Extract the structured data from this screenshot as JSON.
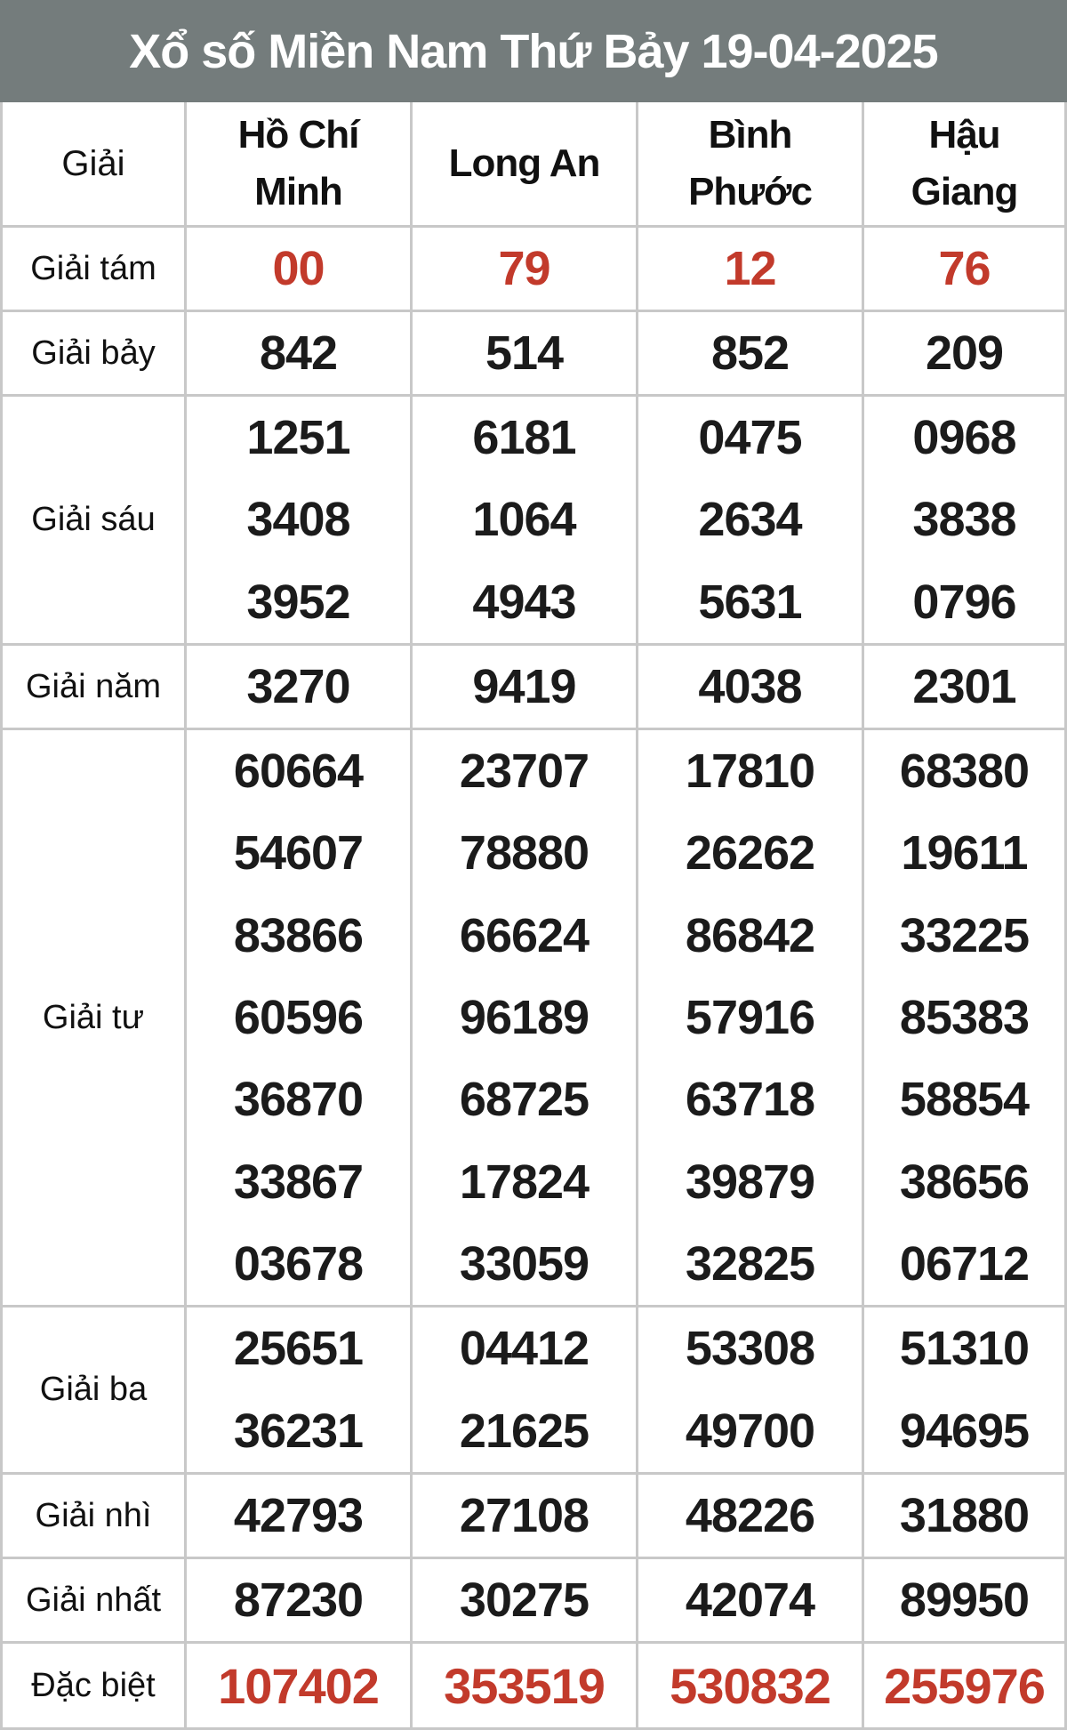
{
  "title": "Xổ số Miền Nam Thứ Bảy 19-04-2025",
  "colors": {
    "header_bg": "#747c7c",
    "header_text": "#ffffff",
    "highlight_red": "#c23a2b",
    "number_black": "#1b1b1b",
    "border_gray": "#c8c8c8"
  },
  "table": {
    "corner_label": "Giải",
    "columns": [
      "Hồ Chí Minh",
      "Long An",
      "Bình Phước",
      "Hậu Giang"
    ],
    "rows": [
      {
        "label": "Giải tám",
        "highlight": true,
        "values": [
          [
            "00"
          ],
          [
            "79"
          ],
          [
            "12"
          ],
          [
            "76"
          ]
        ]
      },
      {
        "label": "Giải bảy",
        "highlight": false,
        "values": [
          [
            "842"
          ],
          [
            "514"
          ],
          [
            "852"
          ],
          [
            "209"
          ]
        ]
      },
      {
        "label": "Giải sáu",
        "highlight": false,
        "values": [
          [
            "1251",
            "3408",
            "3952"
          ],
          [
            "6181",
            "1064",
            "4943"
          ],
          [
            "0475",
            "2634",
            "5631"
          ],
          [
            "0968",
            "3838",
            "0796"
          ]
        ]
      },
      {
        "label": "Giải năm",
        "highlight": false,
        "values": [
          [
            "3270"
          ],
          [
            "9419"
          ],
          [
            "4038"
          ],
          [
            "2301"
          ]
        ]
      },
      {
        "label": "Giải tư",
        "highlight": false,
        "values": [
          [
            "60664",
            "54607",
            "83866",
            "60596",
            "36870",
            "33867",
            "03678"
          ],
          [
            "23707",
            "78880",
            "66624",
            "96189",
            "68725",
            "17824",
            "33059"
          ],
          [
            "17810",
            "26262",
            "86842",
            "57916",
            "63718",
            "39879",
            "32825"
          ],
          [
            "68380",
            "19611",
            "33225",
            "85383",
            "58854",
            "38656",
            "06712"
          ]
        ]
      },
      {
        "label": "Giải ba",
        "highlight": false,
        "values": [
          [
            "25651",
            "36231"
          ],
          [
            "04412",
            "21625"
          ],
          [
            "53308",
            "49700"
          ],
          [
            "51310",
            "94695"
          ]
        ]
      },
      {
        "label": "Giải nhì",
        "highlight": false,
        "values": [
          [
            "42793"
          ],
          [
            "27108"
          ],
          [
            "48226"
          ],
          [
            "31880"
          ]
        ]
      },
      {
        "label": "Giải nhất",
        "highlight": false,
        "values": [
          [
            "87230"
          ],
          [
            "30275"
          ],
          [
            "42074"
          ],
          [
            "89950"
          ]
        ]
      },
      {
        "label": "Đặc biệt",
        "highlight": true,
        "values": [
          [
            "107402"
          ],
          [
            "353519"
          ],
          [
            "530832"
          ],
          [
            "255976"
          ]
        ]
      }
    ]
  }
}
